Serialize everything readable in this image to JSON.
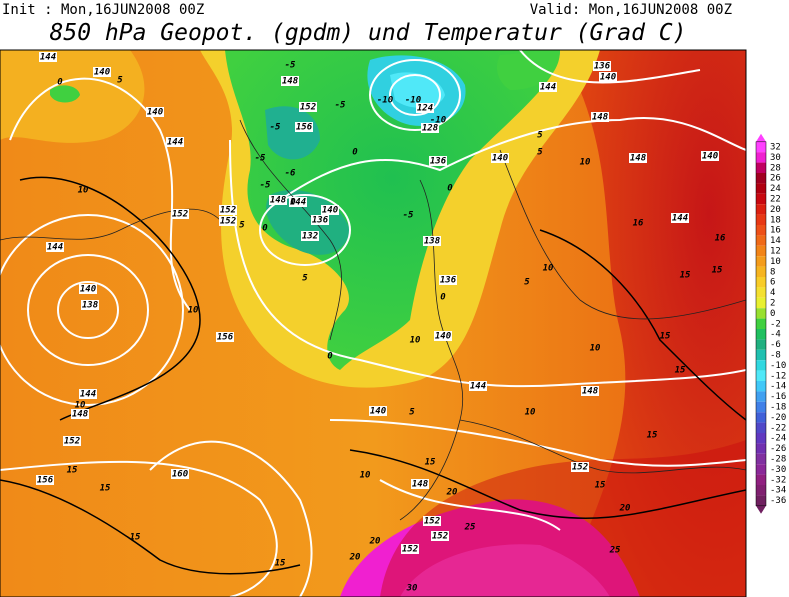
{
  "header": {
    "init": "Init : Mon,16JUN2008 00Z",
    "valid": "Valid: Mon,16JUN2008 00Z",
    "title": "850 hPa Geopot. (gpdm) und Temperatur (Grad C)"
  },
  "colorbar": {
    "ticks": [
      32,
      30,
      28,
      26,
      24,
      22,
      20,
      18,
      16,
      14,
      12,
      10,
      8,
      6,
      4,
      2,
      0,
      -2,
      -4,
      -6,
      -8,
      -10,
      -12,
      -14,
      -16,
      -18,
      -20,
      -22,
      -24,
      -26,
      -28,
      -30,
      -32,
      -34,
      -36
    ],
    "colors": [
      "#ff40ff",
      "#f020d0",
      "#c00060",
      "#a00020",
      "#b00010",
      "#c80810",
      "#dc2010",
      "#e83814",
      "#ee5018",
      "#f06a18",
      "#f28418",
      "#f49c1c",
      "#f6b420",
      "#f8cc28",
      "#f4e030",
      "#e8f030",
      "#98e030",
      "#40d040",
      "#20c060",
      "#20b080",
      "#20c0b0",
      "#30d8e0",
      "#50e8f8",
      "#40c8f8",
      "#40a0f0",
      "#4080e8",
      "#4060d8",
      "#5048c8",
      "#6038c0",
      "#7030b0",
      "#8030a0",
      "#8a2898",
      "#902080",
      "#802070",
      "#702060"
    ]
  },
  "contour_labels": [
    "144",
    "140",
    "0",
    "5",
    "140",
    "144",
    "10",
    "152",
    "144",
    "140",
    "138",
    "10",
    "156",
    "144",
    "10",
    "148",
    "152",
    "15",
    "156",
    "160",
    "15",
    "15",
    "15",
    "20",
    "20",
    "152",
    "152",
    "25",
    "152",
    "20",
    "148",
    "15",
    "10",
    "140",
    "5",
    "144",
    "10",
    "148",
    "15",
    "152",
    "15",
    "20",
    "25",
    "30",
    "10",
    "15",
    "15",
    "15",
    "15",
    "16",
    "16",
    "144",
    "140",
    "148",
    "10",
    "148",
    "140",
    "136",
    "144",
    "5",
    "5",
    "140",
    "136",
    "128",
    "124",
    "-10",
    "-10",
    "-10",
    "0",
    "-5",
    "138",
    "136",
    "0",
    "5",
    "10",
    "140",
    "10",
    "0",
    "5",
    "132",
    "136",
    "140",
    "144",
    "148",
    "152",
    "152",
    "5",
    "0",
    "0",
    "-5",
    "-5",
    "156",
    "152",
    "148",
    "-5",
    "-5",
    "0",
    "-6",
    "-5"
  ]
}
